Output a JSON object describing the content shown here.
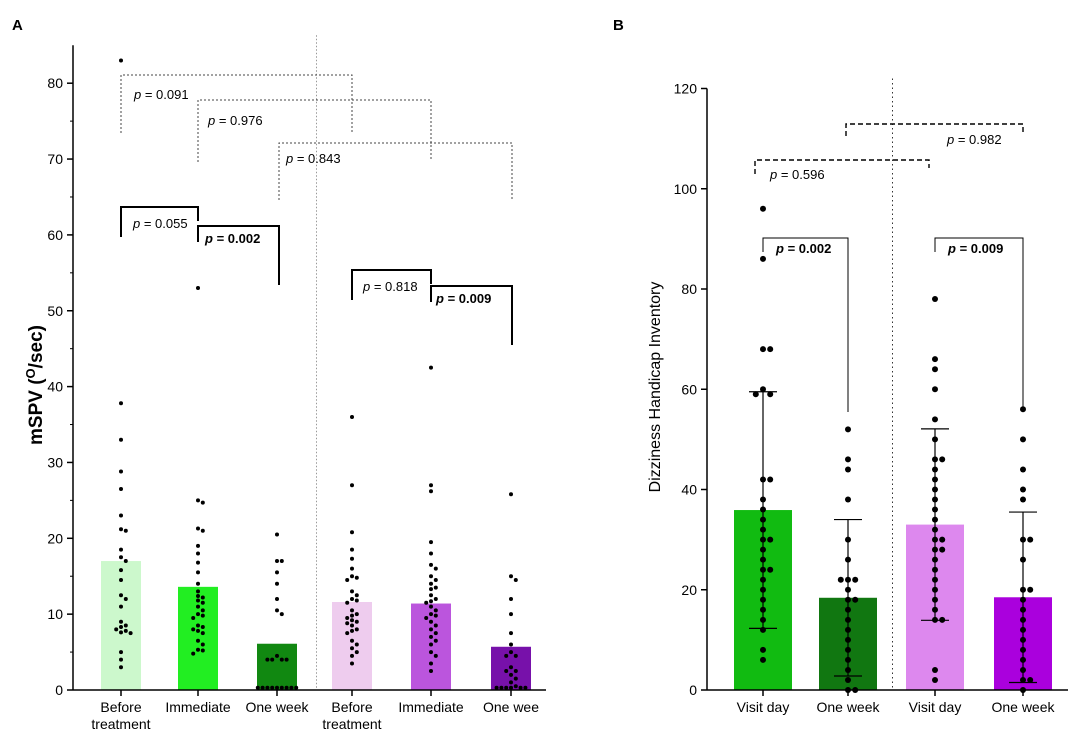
{
  "chart_data": [
    {
      "panel": "A",
      "type": "bar",
      "ylabel": "mSPV (",
      "ylabel_sup": "O",
      "ylabel_tail": "/sec)",
      "ylim": [
        0,
        85
      ],
      "yticks": [
        0,
        10,
        20,
        30,
        40,
        50,
        60,
        70,
        80
      ],
      "categories": [
        [
          "Before",
          "treatment"
        ],
        [
          "Immediate"
        ],
        [
          "One week"
        ],
        [
          "Before",
          "treatment"
        ],
        [
          "Immediate"
        ],
        [
          "One wee"
        ]
      ],
      "values": [
        17.0,
        13.6,
        6.1,
        11.6,
        11.4,
        5.7
      ],
      "colors": [
        "#ccf8cc",
        "#22ee22",
        "#118811",
        "#eeccee",
        "#bb55dd",
        "#7711aa"
      ],
      "points": [
        [
          83,
          37.8,
          33,
          28.8,
          26.5,
          23,
          21.2,
          21,
          18.5,
          17.5,
          17,
          15.8,
          14.5,
          12.5,
          12,
          11,
          9,
          8.5,
          8.3,
          8,
          7.8,
          7.6,
          7.5,
          5,
          4,
          3
        ],
        [
          53,
          25,
          24.7,
          21.3,
          21,
          19,
          18,
          16.8,
          15.5,
          14,
          13,
          12.4,
          12.2,
          11.8,
          11.5,
          11,
          10.5,
          10,
          9.8,
          9.5,
          8.5,
          8.3,
          8,
          7.8,
          7.5,
          6.5,
          6,
          5.3,
          5.2,
          4.8
        ],
        [
          20.5,
          17,
          17,
          15.5,
          14,
          12,
          10.5,
          10,
          4.5,
          4,
          4,
          4,
          4,
          0.3,
          0.3,
          0.3,
          0.3,
          0.3,
          0.3,
          0.3,
          0.3,
          0.3
        ],
        [
          36,
          27,
          20.8,
          18.5,
          17.3,
          16,
          15,
          14.8,
          14.5,
          13,
          12.5,
          12,
          11.8,
          11.5,
          10.5,
          10,
          9.8,
          9.5,
          9.2,
          9,
          8.8,
          8.5,
          8,
          7.8,
          7.5,
          6.5,
          6,
          5.5,
          5,
          4.5,
          3.5
        ],
        [
          42.5,
          27,
          26.2,
          19.5,
          18,
          16.5,
          16,
          15,
          14.5,
          14,
          13.5,
          13.3,
          12.5,
          12,
          11.7,
          11.5,
          11,
          10.5,
          10,
          9.8,
          9.5,
          9,
          8.5,
          8,
          7.5,
          7,
          6.5,
          6,
          5,
          4.5,
          3.5,
          2.5
        ],
        [
          25.8,
          15,
          14.5,
          12,
          10,
          7.5,
          6,
          5,
          4.5,
          4.5,
          3,
          2.5,
          2.5,
          2,
          1.5,
          1,
          0.5,
          0.3,
          0.3,
          0.3,
          0.3,
          0.3,
          0.3
        ]
      ],
      "annotations": [
        {
          "pvalue": "0.091",
          "bold": false,
          "style": "dotted",
          "from": 0,
          "to": 3
        },
        {
          "pvalue": "0.976",
          "bold": false,
          "style": "dotted",
          "from": 1,
          "to": 4
        },
        {
          "pvalue": "0.843",
          "bold": false,
          "style": "dotted",
          "from": 2,
          "to": 5
        },
        {
          "pvalue": "0.055",
          "bold": false,
          "style": "solid",
          "from": 0,
          "to": 1
        },
        {
          "pvalue": "0.002",
          "bold": true,
          "style": "solid",
          "from": 1,
          "to": 2
        },
        {
          "pvalue": "0.818",
          "bold": false,
          "style": "solid",
          "from": 3,
          "to": 4
        },
        {
          "pvalue": "0.009",
          "bold": true,
          "style": "solid",
          "from": 4,
          "to": 5
        }
      ]
    },
    {
      "panel": "B",
      "type": "bar",
      "ylabel": "Dizziness Handicap Inventory",
      "ylim": [
        0,
        120
      ],
      "yticks": [
        0,
        20,
        40,
        60,
        80,
        100,
        120
      ],
      "categories": [
        [
          "Visit day"
        ],
        [
          "One week"
        ],
        [
          "Visit day"
        ],
        [
          "One week"
        ]
      ],
      "values": [
        35.9,
        18.4,
        33.0,
        18.5
      ],
      "sd": [
        23.6,
        15.6,
        19.1,
        17.0
      ],
      "colors": [
        "#11bb11",
        "#117711",
        "#dd88ee",
        "#aa00dd"
      ],
      "points": [
        [
          96,
          86,
          68,
          68,
          60,
          59,
          59,
          42,
          42,
          38,
          36,
          34,
          32,
          30,
          30,
          28,
          26,
          24,
          24,
          22,
          20,
          18,
          16,
          14,
          12,
          8,
          6
        ],
        [
          52,
          46,
          44,
          38,
          30,
          26,
          22,
          22,
          22,
          20,
          18,
          18,
          16,
          14,
          12,
          10,
          8,
          6,
          4,
          2,
          0,
          0
        ],
        [
          78,
          66,
          64,
          60,
          54,
          50,
          46,
          46,
          44,
          42,
          40,
          38,
          36,
          34,
          32,
          30,
          30,
          28,
          28,
          26,
          24,
          22,
          20,
          18,
          16,
          14,
          14,
          4,
          2
        ],
        [
          56,
          50,
          44,
          40,
          38,
          30,
          30,
          26,
          20,
          20,
          18,
          16,
          14,
          12,
          10,
          8,
          6,
          4,
          2,
          2,
          0
        ]
      ],
      "annotations": [
        {
          "pvalue": "0.596",
          "bold": false,
          "style": "dashed",
          "from": 0,
          "to": 2
        },
        {
          "pvalue": "0.982",
          "bold": false,
          "style": "dashed",
          "from": 1,
          "to": 3
        },
        {
          "pvalue": "0.002",
          "bold": true,
          "style": "solid",
          "from": 0,
          "to": 1
        },
        {
          "pvalue": "0.009",
          "bold": true,
          "style": "solid",
          "from": 2,
          "to": 3
        }
      ]
    }
  ]
}
